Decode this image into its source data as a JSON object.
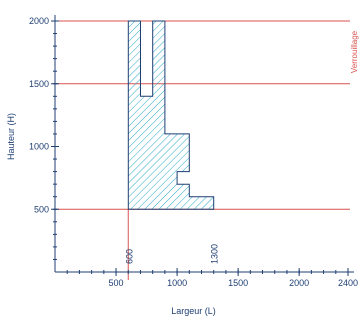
{
  "chart_data": {
    "type": "area",
    "xlabel": "Largeur (L)",
    "ylabel": "Hauteur (H)",
    "xlim": [
      0,
      2400
    ],
    "ylim": [
      0,
      2000
    ],
    "x_ticks": [
      500,
      1000,
      1500,
      2000,
      2400
    ],
    "y_ticks": [
      500,
      1000,
      1500,
      2000
    ],
    "x_minor_step": 100,
    "y_minor_step": 100,
    "hatched_region": [
      [
        600,
        500
      ],
      [
        600,
        2000
      ],
      [
        700,
        2000
      ],
      [
        700,
        1400
      ],
      [
        800,
        1400
      ],
      [
        800,
        2000
      ],
      [
        900,
        2000
      ],
      [
        900,
        1100
      ],
      [
        1100,
        1100
      ],
      [
        1100,
        800
      ],
      [
        1000,
        800
      ],
      [
        1000,
        700
      ],
      [
        1100,
        700
      ],
      [
        1100,
        600
      ],
      [
        1300,
        600
      ],
      [
        1300,
        500
      ]
    ],
    "horizontal_lines": [
      500,
      1500,
      2000
    ],
    "vertical_lines": [
      600
    ],
    "reference_labels": [
      {
        "x": 600,
        "text": "600"
      },
      {
        "x": 1300,
        "text": "1300"
      }
    ],
    "annotation": "Verrouillage"
  },
  "colors": {
    "axis": "#1f3f73",
    "red_line": "#d9534f",
    "hatch": "#2aa9c9",
    "outline": "#1f3f73"
  }
}
